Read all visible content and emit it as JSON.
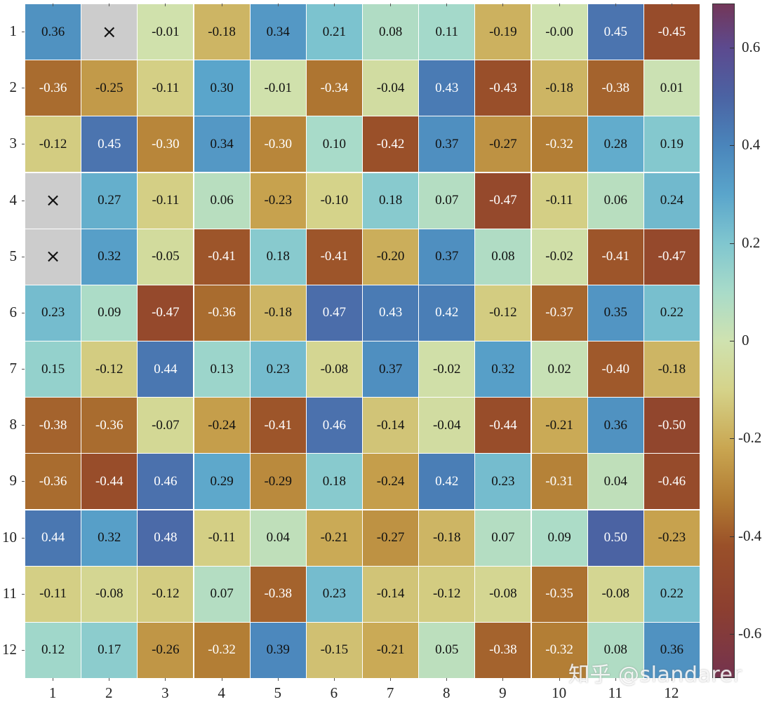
{
  "chart_data": {
    "type": "heatmap",
    "title": "",
    "xlabel": "",
    "ylabel": "",
    "x_ticks": [
      "1",
      "2",
      "3",
      "4",
      "5",
      "6",
      "7",
      "8",
      "9",
      "10",
      "11",
      "12"
    ],
    "y_ticks": [
      "1",
      "2",
      "3",
      "4",
      "5",
      "6",
      "7",
      "8",
      "9",
      "10",
      "11",
      "12"
    ],
    "missing_marker": "×",
    "values": [
      [
        0.36,
        null,
        -0.01,
        -0.18,
        0.34,
        0.21,
        0.08,
        0.11,
        -0.19,
        -0.0,
        0.45,
        -0.45
      ],
      [
        -0.36,
        -0.25,
        -0.11,
        0.3,
        -0.01,
        -0.34,
        -0.04,
        0.43,
        -0.43,
        -0.18,
        -0.38,
        0.01
      ],
      [
        -0.12,
        0.45,
        -0.3,
        0.34,
        -0.3,
        0.1,
        -0.42,
        0.37,
        -0.27,
        -0.32,
        0.28,
        0.19
      ],
      [
        null,
        0.27,
        -0.11,
        0.06,
        -0.23,
        -0.1,
        0.18,
        0.07,
        -0.47,
        -0.11,
        0.06,
        0.24
      ],
      [
        null,
        0.32,
        -0.05,
        -0.41,
        0.18,
        -0.41,
        -0.2,
        0.37,
        0.08,
        -0.02,
        -0.41,
        -0.47
      ],
      [
        0.23,
        0.09,
        -0.47,
        -0.36,
        -0.18,
        0.47,
        0.43,
        0.42,
        -0.12,
        -0.37,
        0.35,
        0.22
      ],
      [
        0.15,
        -0.12,
        0.44,
        0.13,
        0.23,
        -0.08,
        0.37,
        -0.02,
        0.32,
        0.02,
        -0.4,
        -0.18
      ],
      [
        -0.38,
        -0.36,
        -0.07,
        -0.24,
        -0.41,
        0.46,
        -0.14,
        -0.04,
        -0.44,
        -0.21,
        0.36,
        -0.5
      ],
      [
        -0.36,
        -0.44,
        0.46,
        0.29,
        -0.29,
        0.18,
        -0.24,
        0.42,
        0.23,
        -0.31,
        0.04,
        -0.46
      ],
      [
        0.44,
        0.32,
        0.48,
        -0.11,
        0.04,
        -0.21,
        -0.27,
        -0.18,
        0.07,
        0.09,
        0.5,
        -0.23
      ],
      [
        -0.11,
        -0.08,
        -0.12,
        0.07,
        -0.38,
        0.23,
        -0.14,
        -0.12,
        -0.08,
        -0.35,
        -0.08,
        0.22
      ],
      [
        0.12,
        0.17,
        -0.26,
        -0.32,
        0.39,
        -0.15,
        -0.21,
        0.05,
        -0.38,
        -0.32,
        0.08,
        0.36
      ]
    ],
    "labels": [
      [
        "0.36",
        "×",
        "-0.01",
        "-0.18",
        "0.34",
        "0.21",
        "0.08",
        "0.11",
        "-0.19",
        "-0.00",
        "0.45",
        "-0.45"
      ],
      [
        "-0.36",
        "-0.25",
        "-0.11",
        "0.30",
        "-0.01",
        "-0.34",
        "-0.04",
        "0.43",
        "-0.43",
        "-0.18",
        "-0.38",
        "0.01"
      ],
      [
        "-0.12",
        "0.45",
        "-0.30",
        "0.34",
        "-0.30",
        "0.10",
        "-0.42",
        "0.37",
        "-0.27",
        "-0.32",
        "0.28",
        "0.19"
      ],
      [
        "×",
        "0.27",
        "-0.11",
        "0.06",
        "-0.23",
        "-0.10",
        "0.18",
        "0.07",
        "-0.47",
        "-0.11",
        "0.06",
        "0.24"
      ],
      [
        "×",
        "0.32",
        "-0.05",
        "-0.41",
        "0.18",
        "-0.41",
        "-0.20",
        "0.37",
        "0.08",
        "-0.02",
        "-0.41",
        "-0.47"
      ],
      [
        "0.23",
        "0.09",
        "-0.47",
        "-0.36",
        "-0.18",
        "0.47",
        "0.43",
        "0.42",
        "-0.12",
        "-0.37",
        "0.35",
        "0.22"
      ],
      [
        "0.15",
        "-0.12",
        "0.44",
        "0.13",
        "0.23",
        "-0.08",
        "0.37",
        "-0.02",
        "0.32",
        "0.02",
        "-0.40",
        "-0.18"
      ],
      [
        "-0.38",
        "-0.36",
        "-0.07",
        "-0.24",
        "-0.41",
        "0.46",
        "-0.14",
        "-0.04",
        "-0.44",
        "-0.21",
        "0.36",
        "-0.50"
      ],
      [
        "-0.36",
        "-0.44",
        "0.46",
        "0.29",
        "-0.29",
        "0.18",
        "-0.24",
        "0.42",
        "0.23",
        "-0.31",
        "0.04",
        "-0.46"
      ],
      [
        "0.44",
        "0.32",
        "0.48",
        "-0.11",
        "0.04",
        "-0.21",
        "-0.27",
        "-0.18",
        "0.07",
        "0.09",
        "0.50",
        "-0.23"
      ],
      [
        "-0.11",
        "-0.08",
        "-0.12",
        "0.07",
        "-0.38",
        "0.23",
        "-0.14",
        "-0.12",
        "-0.08",
        "-0.35",
        "-0.08",
        "0.22"
      ],
      [
        "0.12",
        "0.17",
        "-0.26",
        "-0.32",
        "0.39",
        "-0.15",
        "-0.21",
        "0.05",
        "-0.38",
        "-0.32",
        "0.08",
        "0.36"
      ]
    ],
    "colorbar": {
      "range": [
        -0.69,
        0.69
      ],
      "ticks": [
        0.6,
        0.4,
        0.2,
        0,
        -0.2,
        -0.4,
        -0.6
      ],
      "tick_labels": [
        "0.6",
        "0.4",
        "0.2",
        "0",
        "-0.2",
        "-0.4",
        "-0.6"
      ],
      "position": "right"
    },
    "colormap_stops": [
      {
        "v": -0.69,
        "color": "#74334f"
      },
      {
        "v": -0.55,
        "color": "#8c3f30"
      },
      {
        "v": -0.42,
        "color": "#9a5029"
      },
      {
        "v": -0.33,
        "color": "#b17a32"
      },
      {
        "v": -0.22,
        "color": "#c9a651"
      },
      {
        "v": -0.1,
        "color": "#d5d38a"
      },
      {
        "v": 0.0,
        "color": "#cfe2b0"
      },
      {
        "v": 0.1,
        "color": "#a8dbc9"
      },
      {
        "v": 0.2,
        "color": "#80c6cf"
      },
      {
        "v": 0.3,
        "color": "#5aa5cb"
      },
      {
        "v": 0.4,
        "color": "#4a85bb"
      },
      {
        "v": 0.5,
        "color": "#4b63a3"
      },
      {
        "v": 0.6,
        "color": "#5c4a8f"
      },
      {
        "v": 0.69,
        "color": "#733759"
      }
    ],
    "nan_color": "#cccccc",
    "grid_line_color": "#ffffff",
    "light_text_threshold": 0.4,
    "dark_text_color": "#111111",
    "light_text_color": "#ffffff"
  },
  "watermark": "知乎 @slandarer"
}
